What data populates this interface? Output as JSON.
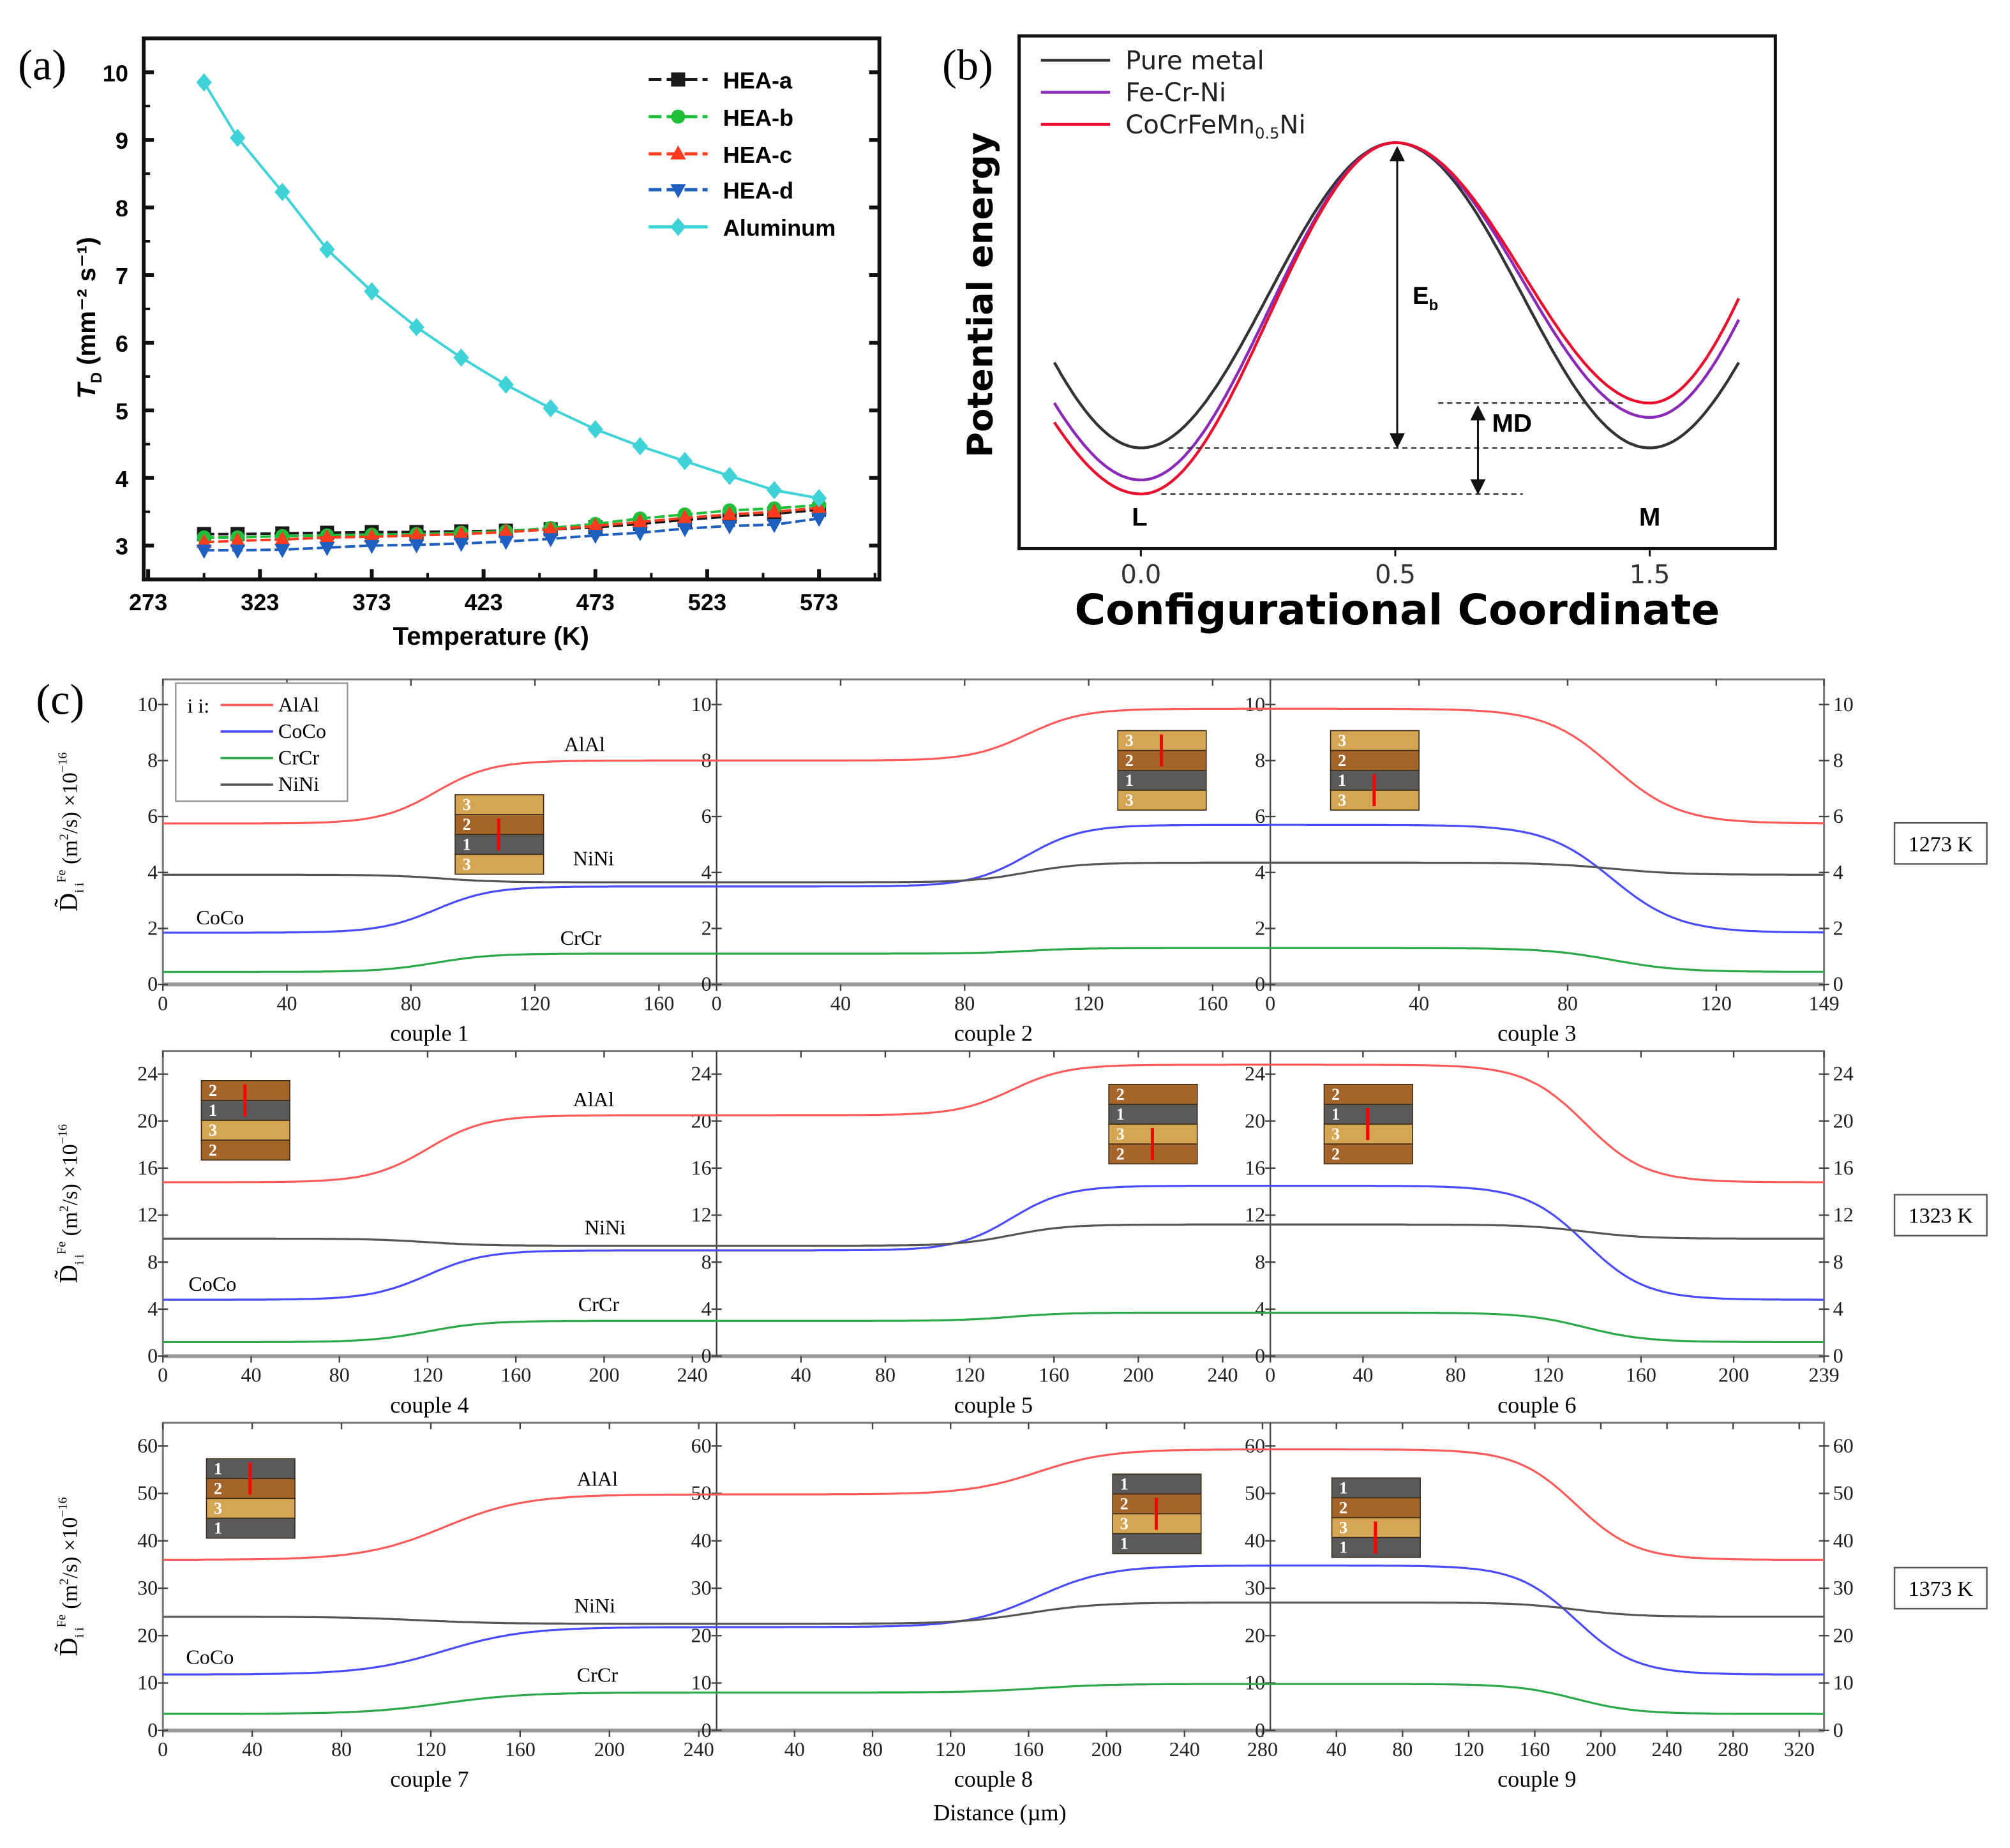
{
  "panel_labels": [
    "(a)",
    "(b)",
    "(c)"
  ],
  "chart_data": [
    {
      "panel": "(a)",
      "type": "line",
      "xlabel": "Temperature (K)",
      "ylabel": {
        "main": "T",
        "sub": "D",
        "units": " (mm⁻² s⁻¹)"
      },
      "xlim": [
        271,
        600
      ],
      "ylim": [
        2.5,
        10.5
      ],
      "xticks": [
        273,
        323,
        373,
        423,
        473,
        523,
        573
      ],
      "yticks": [
        3,
        4,
        5,
        6,
        7,
        8,
        9,
        10
      ],
      "legend_position": "top-right",
      "x": [
        298,
        313,
        333,
        353,
        373,
        393,
        413,
        433,
        453,
        473,
        493,
        513,
        533,
        553,
        573
      ],
      "series": [
        {
          "name": "HEA-a",
          "color": "#1a1a1a",
          "marker": "square",
          "values": [
            3.17,
            3.17,
            3.18,
            3.19,
            3.2,
            3.2,
            3.21,
            3.22,
            3.24,
            3.27,
            3.32,
            3.38,
            3.43,
            3.47,
            3.53
          ]
        },
        {
          "name": "HEA-b",
          "color": "#1fbf3a",
          "marker": "circle",
          "values": [
            3.12,
            3.12,
            3.14,
            3.15,
            3.16,
            3.17,
            3.19,
            3.21,
            3.26,
            3.32,
            3.4,
            3.46,
            3.52,
            3.55,
            3.6
          ]
        },
        {
          "name": "HEA-c",
          "color": "#ff3b1f",
          "marker": "triangle-up",
          "values": [
            3.05,
            3.07,
            3.09,
            3.12,
            3.13,
            3.15,
            3.17,
            3.2,
            3.24,
            3.29,
            3.35,
            3.41,
            3.46,
            3.5,
            3.56
          ]
        },
        {
          "name": "HEA-d",
          "color": "#1f5fbf",
          "marker": "triangle-down",
          "values": [
            2.93,
            2.93,
            2.94,
            2.97,
            3.0,
            3.01,
            3.03,
            3.06,
            3.1,
            3.15,
            3.19,
            3.25,
            3.29,
            3.31,
            3.4
          ]
        },
        {
          "name": "Aluminum",
          "color": "#3fd3d8",
          "marker": "diamond",
          "values": [
            9.85,
            9.03,
            8.23,
            7.38,
            6.76,
            6.23,
            5.78,
            5.38,
            5.03,
            4.72,
            4.47,
            4.25,
            4.03,
            3.82,
            3.7
          ]
        }
      ]
    },
    {
      "panel": "(b)",
      "type": "line",
      "xlabel": "Configurational Coordinate",
      "ylabel": "Potential energy",
      "xticks": [
        "0.0",
        "0.5",
        "1.5"
      ],
      "ylim": [
        -0.33,
        1.35
      ],
      "legend_position": "top-left",
      "series": [
        {
          "name_parts": {
            "main": "Pure metal",
            "sub": "",
            "tail": ""
          },
          "color": "#333333",
          "energy": {
            "start": 0.28,
            "L": 0.0,
            "barrier": 1.0,
            "M": 0.0,
            "end": 0.28
          }
        },
        {
          "name_parts": {
            "main": "Fe-Cr-Ni",
            "sub": "",
            "tail": ""
          },
          "color": "#8a2bb8",
          "energy": {
            "start": 0.147,
            "L": -0.105,
            "barrier": 1.0,
            "M": 0.1,
            "end": 0.42
          }
        },
        {
          "name_parts": {
            "main": "CoCrFeMn",
            "sub": "0.5",
            "tail": "Ni"
          },
          "color": "#e8102e",
          "energy": {
            "start": 0.084,
            "L": -0.151,
            "barrier": 1.0,
            "M": 0.147,
            "end": 0.49
          }
        }
      ],
      "annotations": {
        "eb": {
          "main": "E",
          "sub": "b"
        },
        "md": "MD",
        "l": "L",
        "m": "M"
      }
    },
    {
      "panel": "(c)",
      "type": "line",
      "xlabel": "Distance (µm)",
      "ylabel": {
        "main": "D̃",
        "sub": "i i",
        "sup": "Fe",
        "units": " (m",
        "sq": "2",
        "units2": "/s) ×10",
        "exp": "−16"
      },
      "legend": {
        "title": "i i:",
        "entries": [
          "AlAl",
          "CoCo",
          "CrCr",
          "NiNi"
        ]
      },
      "colors": {
        "AlAl": "#ff5a5a",
        "CoCo": "#4a4aff",
        "CrCr": "#2ca84a",
        "NiNi": "#555555"
      },
      "note": "each curve is a smooth sigmoid step: value goes from 'from' to 'to' around distance 'mid'",
      "rows": [
        {
          "temperature": "1273 K",
          "ylim": [
            0,
            10.9
          ],
          "yticks": [
            0,
            2,
            4,
            6,
            8,
            10
          ],
          "transition_width": 9,
          "curve_labels": [
            "AlAl",
            "NiNi",
            "CoCo",
            "CrCr"
          ],
          "subplots": [
            {
              "label": "couple 1",
              "xlim": [
                0,
                178.6
              ],
              "xticks": [
                0,
                40,
                80,
                120,
                160
              ],
              "layers": [
                "3",
                "2",
                "1",
                "3"
              ],
              "red_span": [
                1,
                2
              ],
              "series": {
                "AlAl": [
                  5.75,
                  8.0,
                  88
                ],
                "CoCo": [
                  1.85,
                  3.5,
                  88
                ],
                "CrCr": [
                  0.45,
                  1.1,
                  88
                ],
                "NiNi": [
                  3.92,
                  3.65,
                  90
                ]
              }
            },
            {
              "label": "couple 2",
              "xlim": [
                0,
                178.6
              ],
              "xticks": [
                0,
                40,
                80,
                120,
                160
              ],
              "layers": [
                "3",
                "2",
                "1",
                "3"
              ],
              "red_span": [
                0,
                1
              ],
              "series": {
                "AlAl": [
                  8.0,
                  9.85,
                  100
                ],
                "CoCo": [
                  3.5,
                  5.7,
                  100
                ],
                "CrCr": [
                  1.1,
                  1.3,
                  100
                ],
                "NiNi": [
                  3.65,
                  4.35,
                  100
                ]
              }
            },
            {
              "label": "couple 3",
              "xlim": [
                0,
                149
              ],
              "xticks": [
                0,
                40,
                80,
                120,
                149
              ],
              "layers": [
                "3",
                "2",
                "1",
                "3"
              ],
              "red_span": [
                2,
                3
              ],
              "series": {
                "AlAl": [
                  9.85,
                  5.75,
                  92
                ],
                "CoCo": [
                  5.7,
                  1.85,
                  92
                ],
                "CrCr": [
                  1.3,
                  0.45,
                  92
                ],
                "NiNi": [
                  4.35,
                  3.92,
                  92
                ]
              }
            }
          ]
        },
        {
          "temperature": "1323 K",
          "ylim": [
            0,
            25.96
          ],
          "yticks": [
            0,
            4,
            8,
            12,
            16,
            20,
            24
          ],
          "transition_width": 13,
          "curve_labels": [
            "AlAl",
            "NiNi",
            "CoCo",
            "CrCr"
          ],
          "subplots": [
            {
              "label": "couple 4",
              "xlim": [
                0,
                251
              ],
              "xticks": [
                0,
                40,
                80,
                120,
                160,
                200,
                240
              ],
              "layers": [
                "2",
                "1",
                "3",
                "2"
              ],
              "red_span": [
                0,
                1
              ],
              "series": {
                "AlAl": [
                  14.8,
                  20.5,
                  120
                ],
                "CoCo": [
                  4.8,
                  9.0,
                  120
                ],
                "CrCr": [
                  1.2,
                  3.0,
                  120
                ],
                "NiNi": [
                  10.0,
                  9.4,
                  120
                ]
              }
            },
            {
              "label": "couple 5",
              "xlim": [
                0,
                262.6
              ],
              "xticks": [
                40,
                80,
                120,
                160,
                200,
                240
              ],
              "layers": [
                "2",
                "1",
                "3",
                "2"
              ],
              "red_span": [
                2,
                3
              ],
              "series": {
                "AlAl": [
                  20.5,
                  24.8,
                  140
                ],
                "CoCo": [
                  9.0,
                  14.5,
                  140
                ],
                "CrCr": [
                  3.0,
                  3.7,
                  140
                ],
                "NiNi": [
                  9.4,
                  11.2,
                  140
                ]
              }
            },
            {
              "label": "couple 6",
              "xlim": [
                0,
                239
              ],
              "xticks": [
                0,
                40,
                80,
                120,
                160,
                200,
                239
              ],
              "layers": [
                "2",
                "1",
                "3",
                "2"
              ],
              "red_span": [
                1,
                2
              ],
              "series": {
                "AlAl": [
                  24.8,
                  14.8,
                  136
                ],
                "CoCo": [
                  14.5,
                  4.8,
                  136
                ],
                "CrCr": [
                  3.7,
                  1.2,
                  136
                ],
                "NiNi": [
                  11.2,
                  10.0,
                  136
                ]
              }
            }
          ]
        },
        {
          "temperature": "1373 K",
          "ylim": [
            0,
            64.9
          ],
          "yticks": [
            0,
            10,
            20,
            30,
            40,
            50,
            60
          ],
          "transition_width": 18,
          "curve_labels": [
            "AlAl",
            "NiNi",
            "CoCo",
            "CrCr"
          ],
          "subplots": [
            {
              "label": "couple 7",
              "xlim": [
                0,
                248
              ],
              "xticks": [
                0,
                40,
                80,
                120,
                160,
                200,
                240
              ],
              "layers": [
                "1",
                "2",
                "3",
                "1"
              ],
              "red_span": [
                0,
                1
              ],
              "series": {
                "AlAl": [
                  36,
                  49.8,
                  126
                ],
                "CoCo": [
                  11.8,
                  21.8,
                  126
                ],
                "CrCr": [
                  3.5,
                  8.0,
                  126
                ],
                "NiNi": [
                  24,
                  22.5,
                  115
                ]
              }
            },
            {
              "label": "couple 8",
              "xlim": [
                0,
                284
              ],
              "xticks": [
                40,
                80,
                120,
                160,
                200,
                240,
                280
              ],
              "layers": [
                "1",
                "2",
                "3",
                "1"
              ],
              "red_span": [
                1,
                2
              ],
              "series": {
                "AlAl": [
                  49.8,
                  59.3,
                  165
                ],
                "CoCo": [
                  21.8,
                  34.8,
                  165
                ],
                "CrCr": [
                  8.0,
                  9.8,
                  165
                ],
                "NiNi": [
                  22.5,
                  27,
                  160
                ]
              }
            },
            {
              "label": "couple 9",
              "xlim": [
                0,
                335
              ],
              "xticks": [
                40,
                80,
                120,
                160,
                200,
                240,
                280,
                320
              ],
              "layers": [
                "1",
                "2",
                "3",
                "1"
              ],
              "red_span": [
                2,
                3
              ],
              "series": {
                "AlAl": [
                  59.3,
                  36,
                  185
                ],
                "CoCo": [
                  34.8,
                  11.8,
                  185
                ],
                "CrCr": [
                  9.8,
                  3.5,
                  185
                ],
                "NiNi": [
                  27,
                  24,
                  185
                ]
              }
            }
          ]
        }
      ]
    }
  ]
}
